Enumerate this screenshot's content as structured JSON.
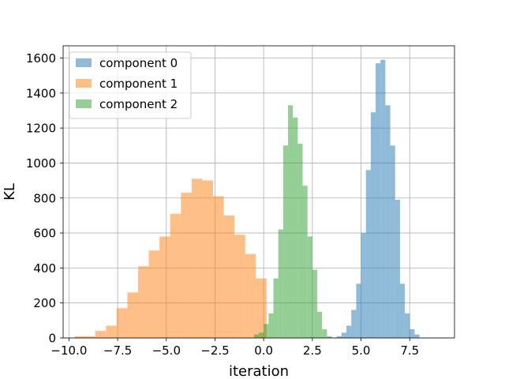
{
  "chart_data": {
    "type": "bar",
    "subtype": "histogram",
    "xlabel": "iteration",
    "ylabel": "KL",
    "xlim": [
      -10.3,
      9.8
    ],
    "ylim": [
      0,
      1670
    ],
    "grid": true,
    "legend_position": "top-left",
    "x_ticks": [
      -10.0,
      -7.5,
      -5.0,
      -2.5,
      0.0,
      2.5,
      5.0,
      7.5
    ],
    "x_tick_labels": [
      "−10.0",
      "−7.5",
      "−5.0",
      "−2.5",
      "0.0",
      "2.5",
      "5.0",
      "7.5"
    ],
    "y_ticks": [
      0,
      200,
      400,
      600,
      800,
      1000,
      1200,
      1400,
      1600
    ],
    "y_tick_labels": [
      "0",
      "200",
      "400",
      "600",
      "800",
      "1000",
      "1200",
      "1400",
      "1600"
    ],
    "series": [
      {
        "name": "component 0",
        "color": "#1f77b4",
        "opacity": 0.5,
        "bin_edges": [
          3.75,
          4.0,
          4.25,
          4.5,
          4.75,
          5.0,
          5.25,
          5.5,
          5.75,
          6.0,
          6.25,
          6.5,
          6.75,
          7.0,
          7.25,
          7.5,
          7.75,
          8.0,
          8.25
        ],
        "counts": [
          10,
          30,
          70,
          160,
          310,
          600,
          960,
          1290,
          1570,
          1590,
          1330,
          1100,
          790,
          310,
          140,
          50,
          20,
          0
        ]
      },
      {
        "name": "component 1",
        "color": "#ff7f0e",
        "opacity": 0.5,
        "bin_edges": [
          -9.7,
          -8.65,
          -8.1,
          -7.55,
          -7.0,
          -6.45,
          -5.9,
          -5.35,
          -4.8,
          -4.25,
          -3.7,
          -3.15,
          -2.6,
          -2.05,
          -1.5,
          -0.95,
          -0.4,
          0.15
        ],
        "counts": [
          10,
          40,
          70,
          170,
          260,
          410,
          500,
          580,
          710,
          830,
          910,
          900,
          810,
          700,
          590,
          480,
          340
        ]
      },
      {
        "name": "component 2",
        "color": "#2ca02c",
        "opacity": 0.5,
        "bin_edges": [
          -0.5,
          -0.25,
          0.0,
          0.25,
          0.5,
          0.75,
          1.0,
          1.25,
          1.5,
          1.75,
          2.0,
          2.25,
          2.5,
          2.75,
          3.0,
          3.25,
          3.5
        ],
        "counts": [
          20,
          30,
          80,
          140,
          340,
          620,
          1100,
          1330,
          1260,
          1110,
          870,
          580,
          390,
          150,
          50,
          10
        ]
      }
    ]
  }
}
